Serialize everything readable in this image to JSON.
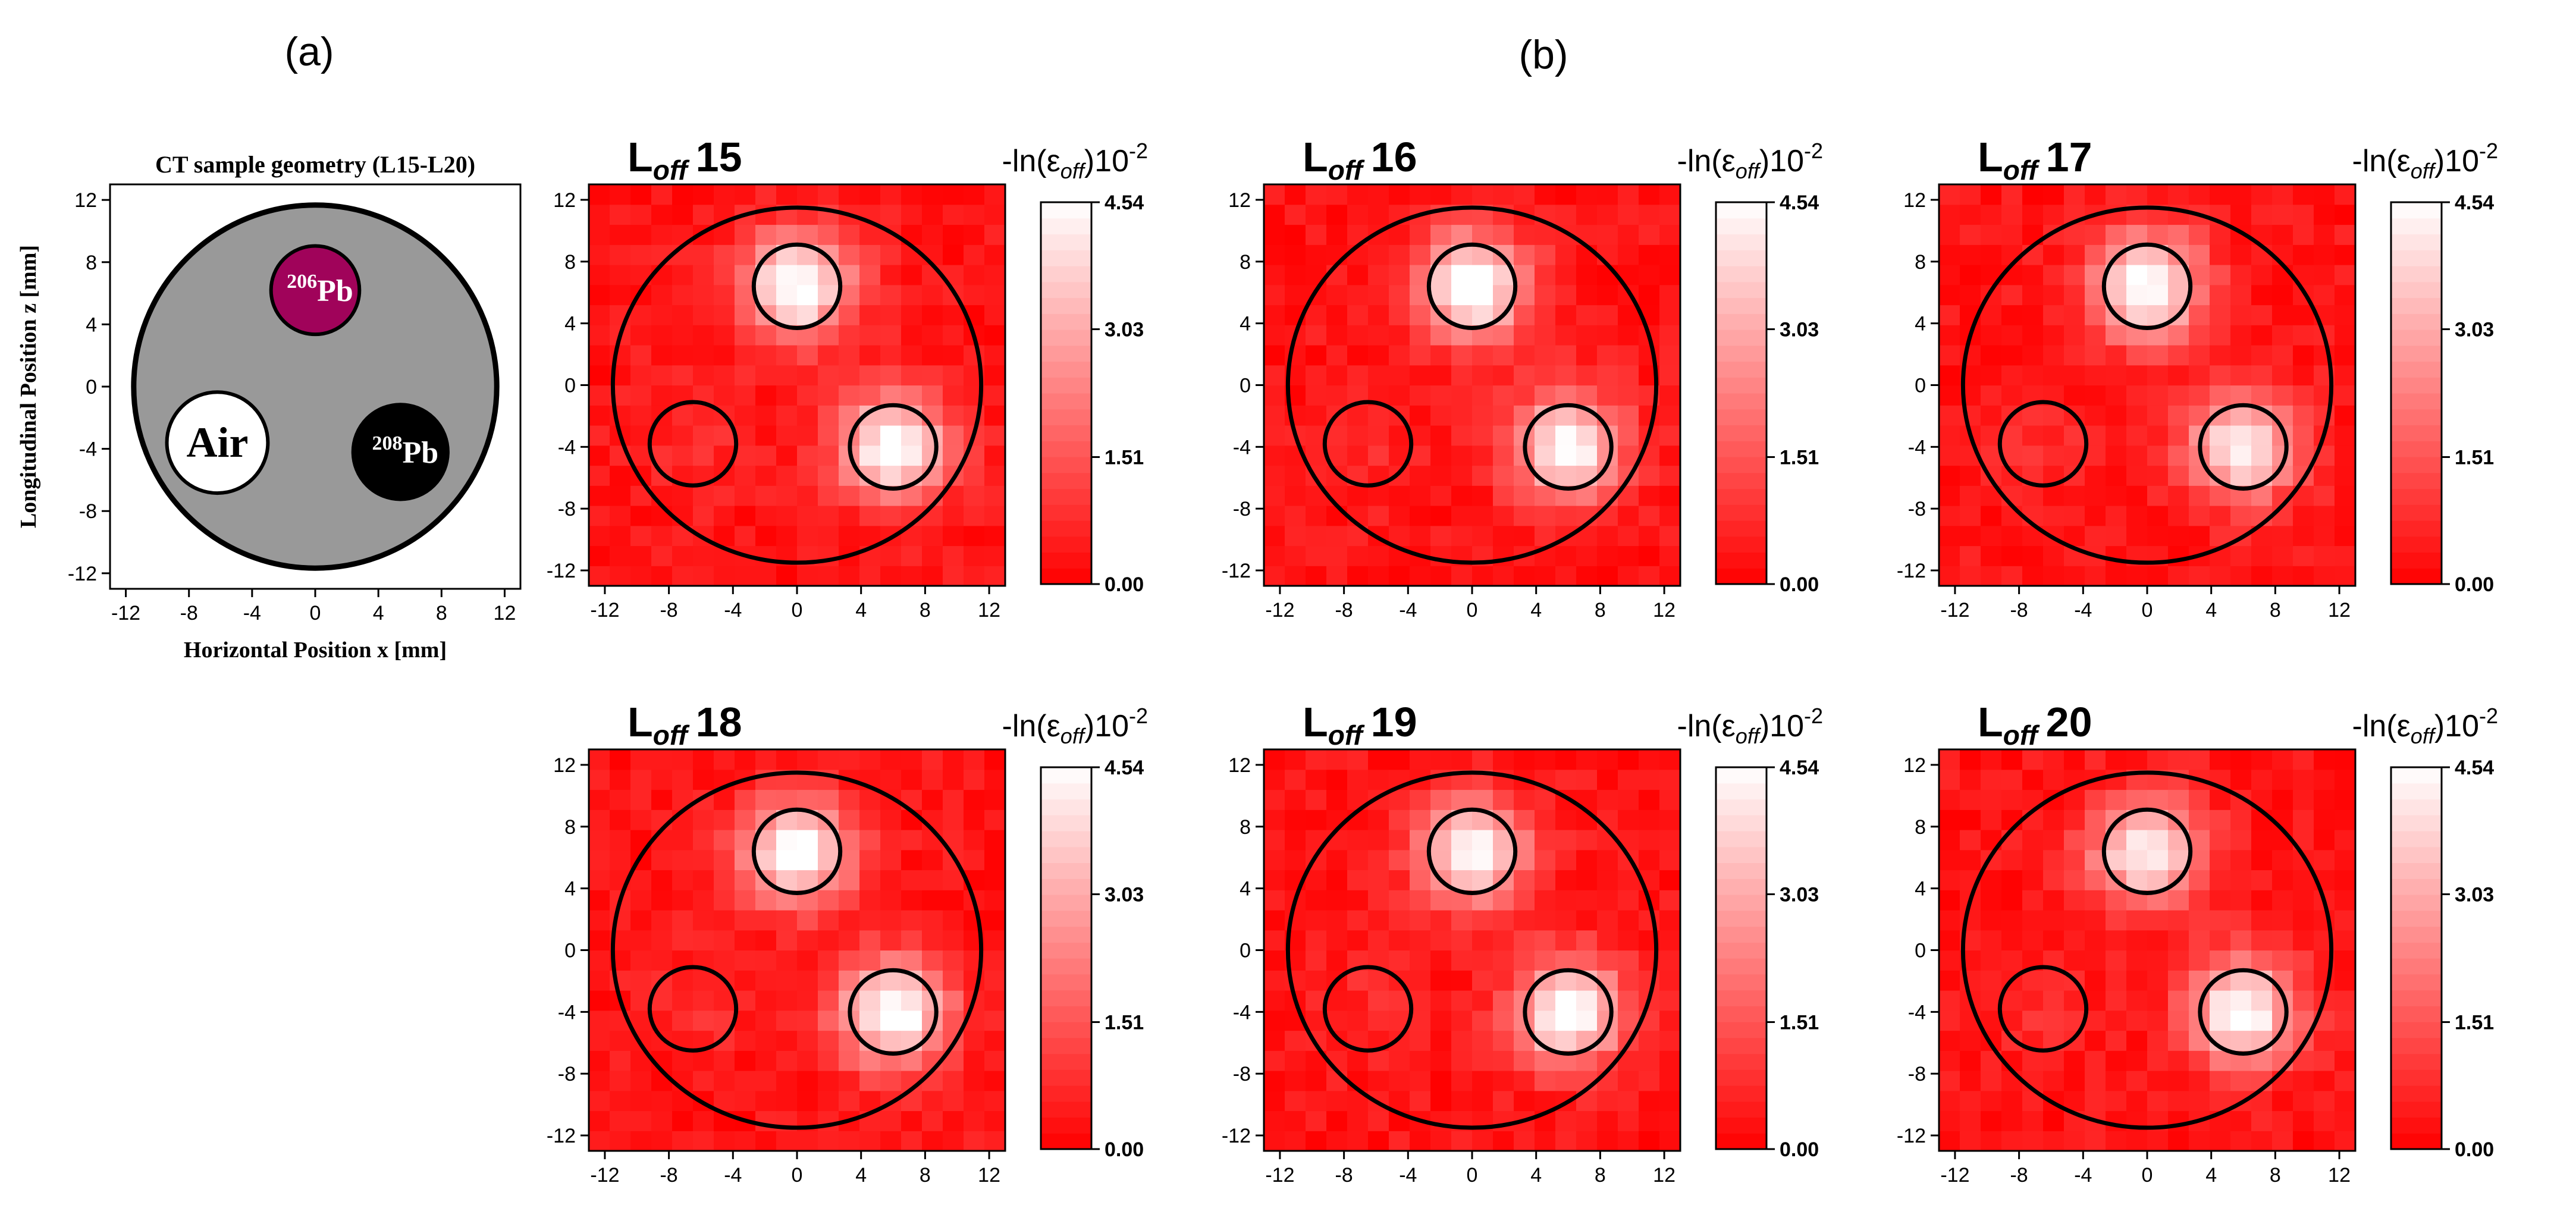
{
  "panel_labels": {
    "a": "(a)",
    "b": "(b)"
  },
  "geometry": {
    "title": "CT sample geometry (L15-L20)",
    "xlabel": "Horizontal Position x [mm]",
    "ylabel": "Longitudinal Position z [mm]",
    "ticks": [
      "-12",
      "-8",
      "-4",
      "0",
      "4",
      "8",
      "12"
    ],
    "xlim": [
      -13,
      13
    ],
    "ylim": [
      -13,
      13
    ],
    "regions": [
      {
        "name": "sample",
        "cx": 0,
        "cy": 0,
        "r": 11.5,
        "color": "#999999"
      },
      {
        "name": "206Pb",
        "cx": 0,
        "cy": 6.2,
        "r": 2.8,
        "color": "#a0035a",
        "sup": "206",
        "label": "Pb",
        "text_color": "#ffffff"
      },
      {
        "name": "Air",
        "cx": -6.2,
        "cy": -3.6,
        "r": 3.2,
        "color": "#ffffff",
        "sup": "",
        "label": "Air",
        "text_color": "#000000"
      },
      {
        "name": "208Pb",
        "cx": 5.4,
        "cy": -4.2,
        "r": 3.0,
        "color": "#000000",
        "sup": "208",
        "label": "Pb",
        "text_color": "#ffffff"
      }
    ]
  },
  "colorbar": {
    "title": "-ln(ε",
    "title_sub": "off",
    "title_mid": ")10",
    "title_sup": "-2",
    "range": [
      0,
      4.54
    ],
    "tick_values": [
      0,
      1.51,
      3.03,
      4.54
    ],
    "tick_labels": [
      "0.00",
      "1.51",
      "3.03",
      "4.54"
    ],
    "colors": [
      "#ff0000",
      "#ffffff"
    ]
  },
  "chart_data": [
    {
      "type": "heatmap",
      "title": "L",
      "title_sub": "off",
      "title_num": "15",
      "xlim": [
        -13,
        13
      ],
      "ylim": [
        -13,
        13
      ],
      "ticks": [
        "-12",
        "-8",
        "-4",
        "0",
        "4",
        "8",
        "12"
      ],
      "grid_n": 20,
      "value_range": [
        0,
        4.54
      ],
      "hotspots": [
        {
          "x": 0,
          "y": 6.4,
          "peak": 4.54
        },
        {
          "x": 6,
          "y": -4,
          "peak": 4.3
        },
        {
          "x": -6.5,
          "y": -3.8,
          "peak": 0.5
        }
      ]
    },
    {
      "type": "heatmap",
      "title": "L",
      "title_sub": "off",
      "title_num": "16",
      "xlim": [
        -13,
        13
      ],
      "ylim": [
        -13,
        13
      ],
      "ticks": [
        "-12",
        "-8",
        "-4",
        "0",
        "4",
        "8",
        "12"
      ],
      "grid_n": 20,
      "value_range": [
        0,
        4.54
      ],
      "hotspots": [
        {
          "x": 0,
          "y": 6.4,
          "peak": 4.54
        },
        {
          "x": 6,
          "y": -4,
          "peak": 4.2
        },
        {
          "x": -6.5,
          "y": -3.8,
          "peak": 0.4
        }
      ]
    },
    {
      "type": "heatmap",
      "title": "L",
      "title_sub": "off",
      "title_num": "17",
      "xlim": [
        -13,
        13
      ],
      "ylim": [
        -13,
        13
      ],
      "ticks": [
        "-12",
        "-8",
        "-4",
        "0",
        "4",
        "8",
        "12"
      ],
      "grid_n": 20,
      "value_range": [
        0,
        4.54
      ],
      "hotspots": [
        {
          "x": 0,
          "y": 6.4,
          "peak": 4.5
        },
        {
          "x": 6,
          "y": -4,
          "peak": 3.9
        },
        {
          "x": -6.5,
          "y": -3.8,
          "peak": 0.4
        }
      ]
    },
    {
      "type": "heatmap",
      "title": "L",
      "title_sub": "off",
      "title_num": "18",
      "xlim": [
        -13,
        13
      ],
      "ylim": [
        -13,
        13
      ],
      "ticks": [
        "-12",
        "-8",
        "-4",
        "0",
        "4",
        "8",
        "12"
      ],
      "grid_n": 20,
      "value_range": [
        0,
        4.54
      ],
      "hotspots": [
        {
          "x": 0,
          "y": 6.4,
          "peak": 4.4
        },
        {
          "x": 6,
          "y": -4,
          "peak": 4.5
        },
        {
          "x": -6.5,
          "y": -3.8,
          "peak": 0.4
        }
      ]
    },
    {
      "type": "heatmap",
      "title": "L",
      "title_sub": "off",
      "title_num": "19",
      "xlim": [
        -13,
        13
      ],
      "ylim": [
        -13,
        13
      ],
      "ticks": [
        "-12",
        "-8",
        "-4",
        "0",
        "4",
        "8",
        "12"
      ],
      "grid_n": 20,
      "value_range": [
        0,
        4.54
      ],
      "hotspots": [
        {
          "x": 0,
          "y": 6.4,
          "peak": 4.3
        },
        {
          "x": 6,
          "y": -4,
          "peak": 4.4
        },
        {
          "x": -6.5,
          "y": -3.8,
          "peak": 0.4
        }
      ]
    },
    {
      "type": "heatmap",
      "title": "L",
      "title_sub": "off",
      "title_num": "20",
      "xlim": [
        -13,
        13
      ],
      "ylim": [
        -13,
        13
      ],
      "ticks": [
        "-12",
        "-8",
        "-4",
        "0",
        "4",
        "8",
        "12"
      ],
      "grid_n": 20,
      "value_range": [
        0,
        4.54
      ],
      "hotspots": [
        {
          "x": 0,
          "y": 6.4,
          "peak": 4.2
        },
        {
          "x": 6,
          "y": -4,
          "peak": 4.3
        },
        {
          "x": -6.5,
          "y": -3.8,
          "peak": 0.4
        }
      ]
    }
  ],
  "overlay_circles": [
    {
      "name": "outer-circle",
      "cx": 0,
      "cy": 0,
      "r": 11.5
    },
    {
      "name": "pb206-circle",
      "cx": 0,
      "cy": 6.4,
      "r": 2.7
    },
    {
      "name": "air-circle",
      "cx": -6.5,
      "cy": -3.8,
      "r": 2.7
    },
    {
      "name": "pb208-circle",
      "cx": 6,
      "cy": -4,
      "r": 2.7
    }
  ]
}
